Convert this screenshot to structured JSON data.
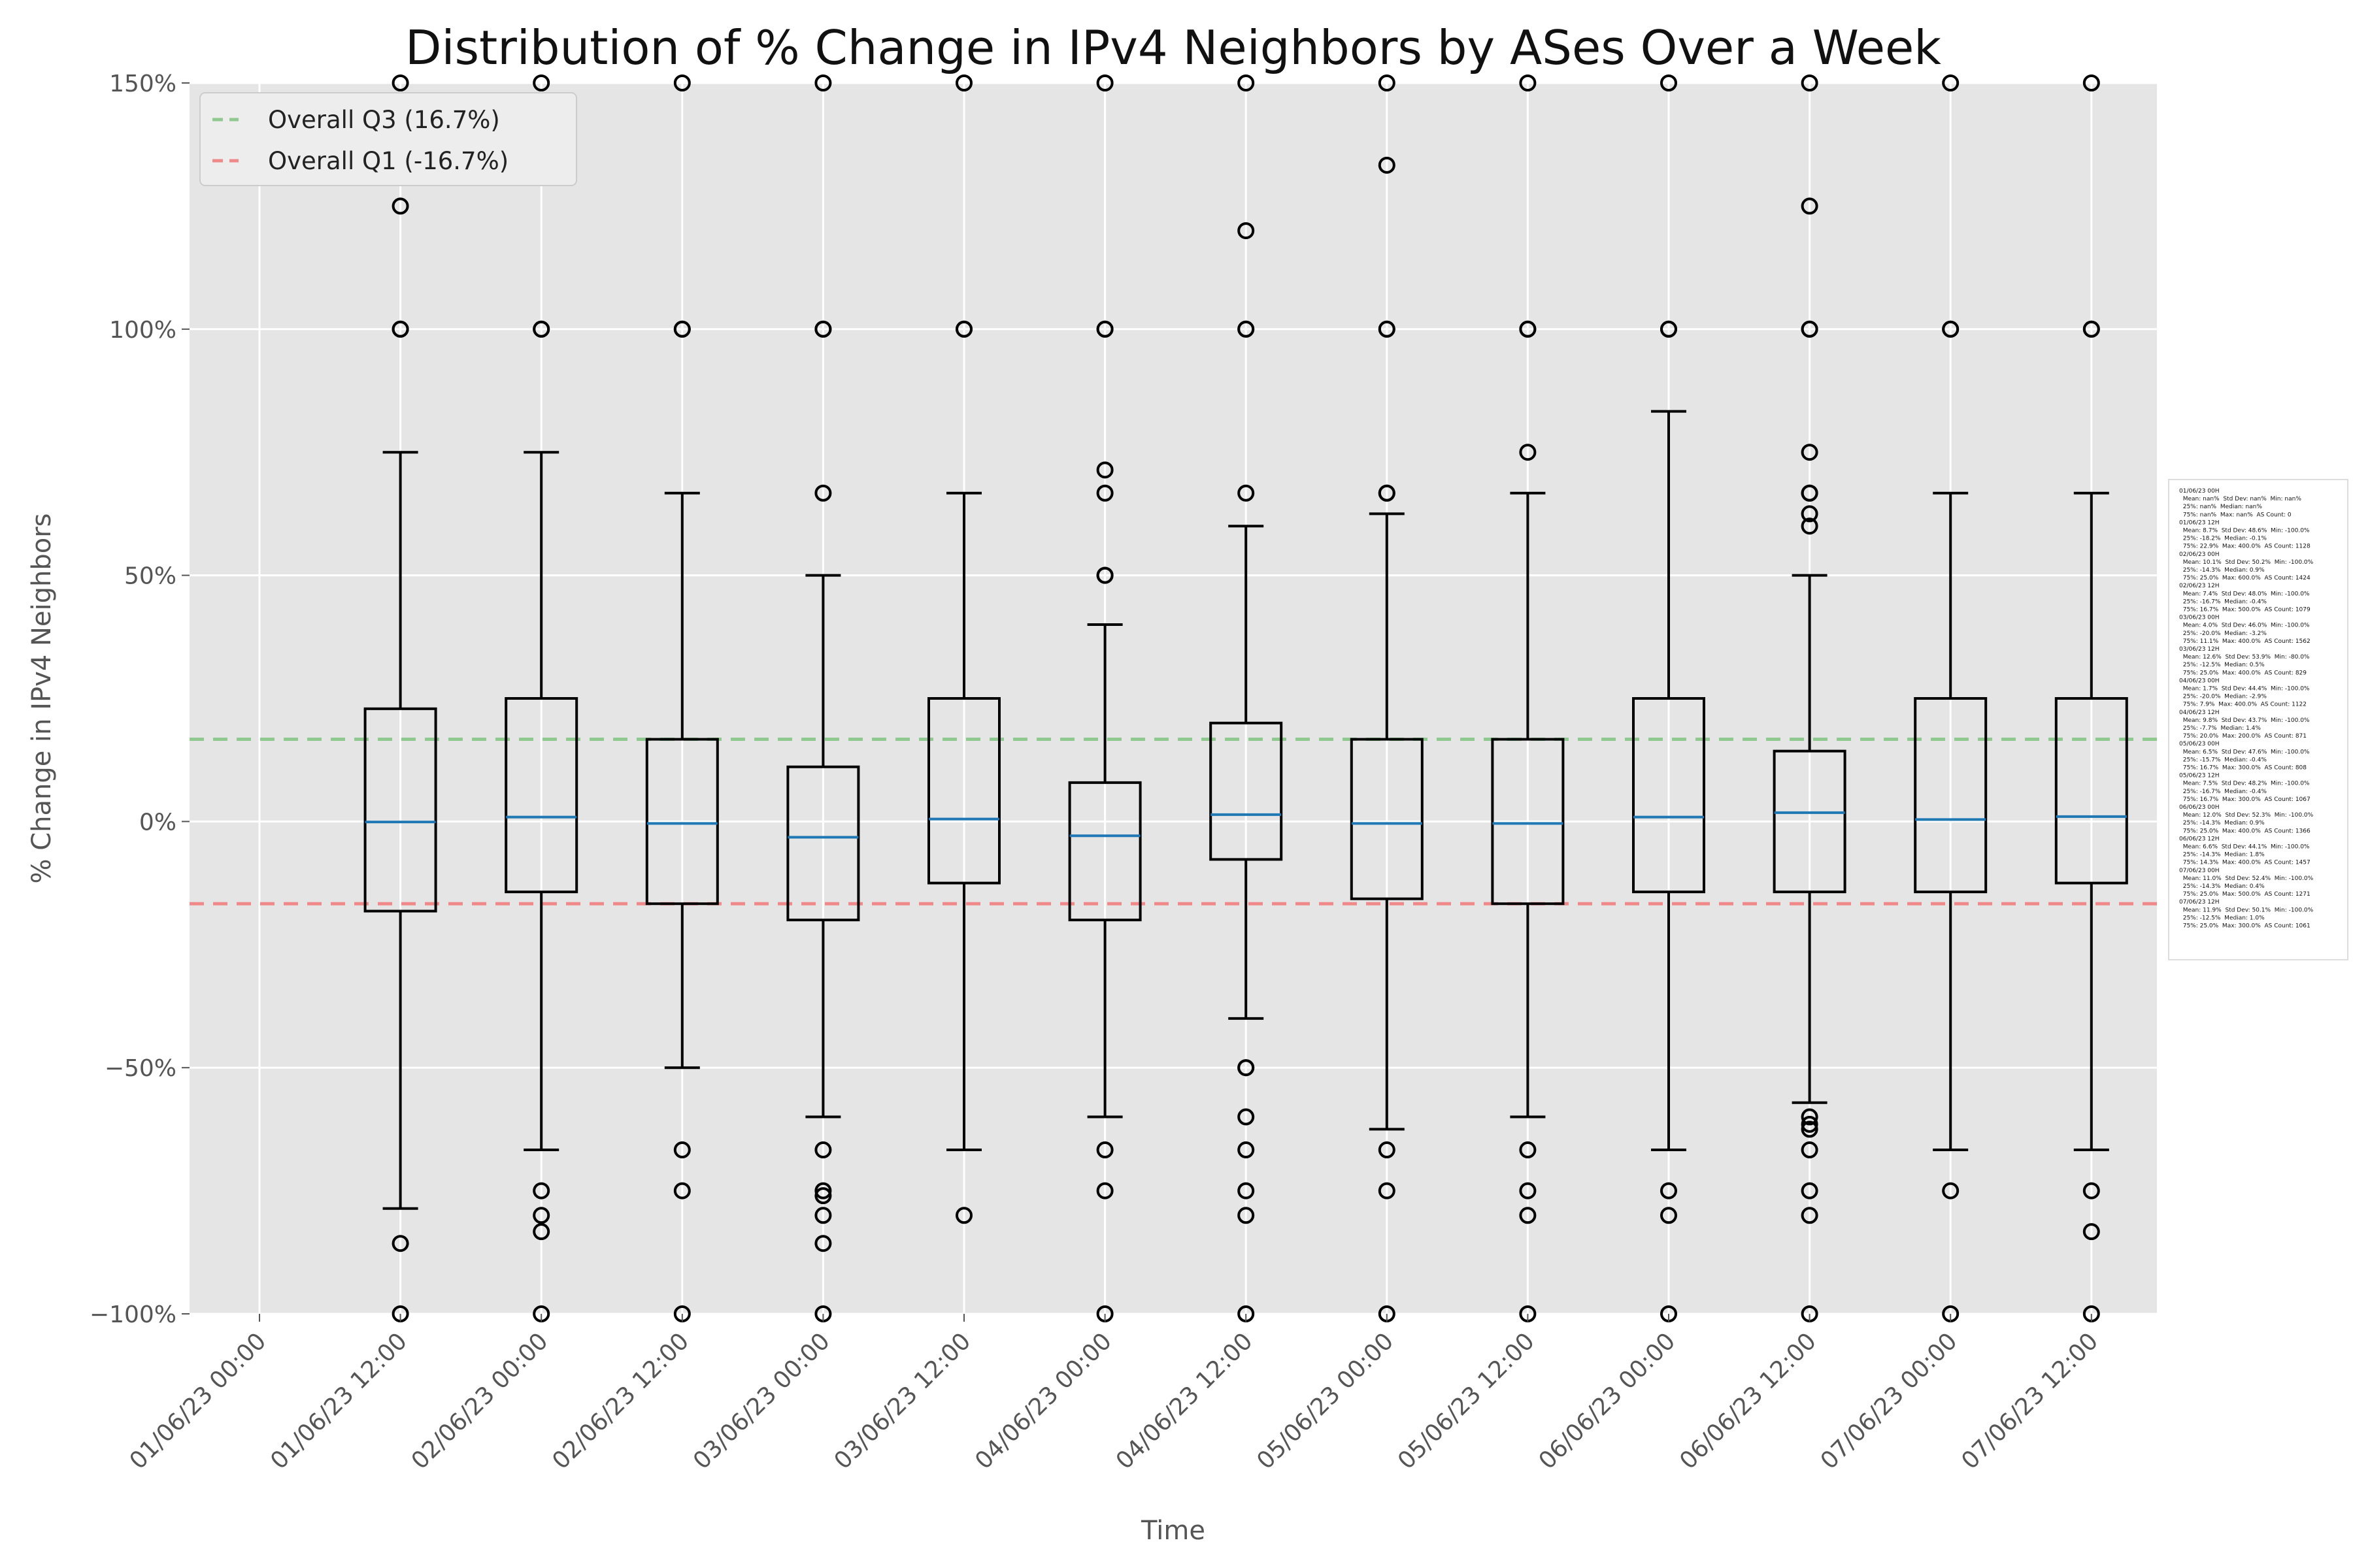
{
  "chart_data": {
    "type": "box",
    "title": "Distribution of % Change in IPv4 Neighbors by ASes Over a Week",
    "xlabel": "Time",
    "ylabel": "% Change in IPv4 Neighbors",
    "ylim": [
      -100,
      150
    ],
    "yticks": [
      -100,
      -50,
      0,
      50,
      100,
      150
    ],
    "ytick_labels": [
      "−100%",
      "−50%",
      "0%",
      "50%",
      "100%",
      "150%"
    ],
    "grid": true,
    "legend_position": "top-left",
    "colors": {
      "plot_bg": "#E5E5E5",
      "grid": "#FFFFFF",
      "box": "#000000",
      "median": "#1F77B4",
      "q3_line": "#8FC98F",
      "q1_line": "#F08A8A"
    },
    "reference_lines": [
      {
        "name": "Overall Q3 (16.7%)",
        "value": 16.7,
        "color": "#8FC98F"
      },
      {
        "name": "Overall Q1 (-16.7%)",
        "value": -16.7,
        "color": "#F08A8A"
      }
    ],
    "categories": [
      "01/06/23 00:00",
      "01/06/23 12:00",
      "02/06/23 00:00",
      "02/06/23 12:00",
      "03/06/23 00:00",
      "03/06/23 12:00",
      "04/06/23 00:00",
      "04/06/23 12:00",
      "05/06/23 00:00",
      "05/06/23 12:00",
      "06/06/23 00:00",
      "06/06/23 12:00",
      "07/06/23 00:00",
      "07/06/23 12:00"
    ],
    "boxes": [
      null,
      {
        "whislo": -78.6,
        "q1": -18.2,
        "median": -0.1,
        "q3": 22.9,
        "whishi": 75,
        "fliers": [
          150,
          125,
          100,
          100,
          -85.7,
          -100
        ]
      },
      {
        "whislo": -66.7,
        "q1": -14.3,
        "median": 0.9,
        "q3": 25.0,
        "whishi": 75,
        "fliers": [
          150,
          100,
          100,
          -75,
          -80,
          -83.3,
          -100
        ]
      },
      {
        "whislo": -50,
        "q1": -16.7,
        "median": -0.4,
        "q3": 16.7,
        "whishi": 66.7,
        "fliers": [
          150,
          100,
          100,
          -66.7,
          -75,
          -100
        ]
      },
      {
        "whislo": -60,
        "q1": -20.0,
        "median": -3.2,
        "q3": 11.1,
        "whishi": 50,
        "fliers": [
          150,
          100,
          100,
          66.7,
          -66.7,
          -75,
          -76,
          -80,
          -85.7,
          -100
        ]
      },
      {
        "whislo": -66.7,
        "q1": -12.5,
        "median": 0.5,
        "q3": 25.0,
        "whishi": 66.7,
        "fliers": [
          150,
          100,
          100,
          -80
        ]
      },
      {
        "whislo": -60,
        "q1": -20.0,
        "median": -2.9,
        "q3": 7.9,
        "whishi": 40,
        "fliers": [
          150,
          100,
          100,
          71.4,
          66.7,
          50,
          50,
          -66.7,
          -75,
          -100
        ]
      },
      {
        "whislo": -40,
        "q1": -7.7,
        "median": 1.4,
        "q3": 20.0,
        "whishi": 60,
        "fliers": [
          150,
          120,
          100,
          100,
          66.7,
          -50,
          -50,
          -60,
          -66.7,
          -75,
          -80,
          -100
        ]
      },
      {
        "whislo": -62.5,
        "q1": -15.7,
        "median": -0.4,
        "q3": 16.7,
        "whishi": 62.5,
        "fliers": [
          150,
          133.3,
          100,
          100,
          66.7,
          66.7,
          -66.7,
          -75,
          -100
        ]
      },
      {
        "whislo": -60,
        "q1": -16.7,
        "median": -0.4,
        "q3": 16.7,
        "whishi": 66.7,
        "fliers": [
          150,
          100,
          100,
          75,
          -66.7,
          -75,
          -80,
          -100
        ]
      },
      {
        "whislo": -66.7,
        "q1": -14.3,
        "median": 0.9,
        "q3": 25.0,
        "whishi": 83.3,
        "fliers": [
          150,
          100,
          100,
          -75,
          -80,
          -100
        ]
      },
      {
        "whislo": -57.1,
        "q1": -14.3,
        "median": 1.8,
        "q3": 14.3,
        "whishi": 50,
        "fliers": [
          150,
          125,
          100,
          100,
          75,
          66.7,
          66.7,
          62.5,
          60,
          -60,
          -61.5,
          -62.5,
          -66.7,
          -75,
          -80,
          -100
        ]
      },
      {
        "whislo": -66.7,
        "q1": -14.3,
        "median": 0.4,
        "q3": 25.0,
        "whishi": 66.7,
        "fliers": [
          150,
          100,
          100,
          -75,
          -100
        ]
      },
      {
        "whislo": -66.7,
        "q1": -12.5,
        "median": 1.0,
        "q3": 25.0,
        "whishi": 66.7,
        "fliers": [
          150,
          100,
          100,
          -75,
          -83.3,
          -100
        ]
      }
    ],
    "stats_box_lines": [
      "01/06/23 00H",
      "  Mean: nan%  Std Dev: nan%  Min: nan%",
      "  25%: nan%  Median: nan%",
      "  75%: nan%  Max: nan%  AS Count: 0",
      "01/06/23 12H",
      "  Mean: 8.7%  Std Dev: 48.6%  Min: -100.0%",
      "  25%: -18.2%  Median: -0.1%",
      "  75%: 22.9%  Max: 400.0%  AS Count: 1128",
      "02/06/23 00H",
      "  Mean: 10.1%  Std Dev: 50.2%  Min: -100.0%",
      "  25%: -14.3%  Median: 0.9%",
      "  75%: 25.0%  Max: 600.0%  AS Count: 1424",
      "02/06/23 12H",
      "  Mean: 7.4%  Std Dev: 48.0%  Min: -100.0%",
      "  25%: -16.7%  Median: -0.4%",
      "  75%: 16.7%  Max: 500.0%  AS Count: 1079",
      "03/06/23 00H",
      "  Mean: 4.0%  Std Dev: 46.0%  Min: -100.0%",
      "  25%: -20.0%  Median: -3.2%",
      "  75%: 11.1%  Max: 400.0%  AS Count: 1562",
      "03/06/23 12H",
      "  Mean: 12.6%  Std Dev: 53.9%  Min: -80.0%",
      "  25%: -12.5%  Median: 0.5%",
      "  75%: 25.0%  Max: 400.0%  AS Count: 829",
      "04/06/23 00H",
      "  Mean: 1.7%  Std Dev: 44.4%  Min: -100.0%",
      "  25%: -20.0%  Median: -2.9%",
      "  75%: 7.9%  Max: 400.0%  AS Count: 1122",
      "04/06/23 12H",
      "  Mean: 9.8%  Std Dev: 43.7%  Min: -100.0%",
      "  25%: -7.7%  Median: 1.4%",
      "  75%: 20.0%  Max: 200.0%  AS Count: 871",
      "05/06/23 00H",
      "  Mean: 6.5%  Std Dev: 47.6%  Min: -100.0%",
      "  25%: -15.7%  Median: -0.4%",
      "  75%: 16.7%  Max: 300.0%  AS Count: 808",
      "05/06/23 12H",
      "  Mean: 7.5%  Std Dev: 48.2%  Min: -100.0%",
      "  25%: -16.7%  Median: -0.4%",
      "  75%: 16.7%  Max: 300.0%  AS Count: 1067",
      "06/06/23 00H",
      "  Mean: 12.0%  Std Dev: 52.3%  Min: -100.0%",
      "  25%: -14.3%  Median: 0.9%",
      "  75%: 25.0%  Max: 400.0%  AS Count: 1366",
      "06/06/23 12H",
      "  Mean: 6.6%  Std Dev: 44.1%  Min: -100.0%",
      "  25%: -14.3%  Median: 1.8%",
      "  75%: 14.3%  Max: 400.0%  AS Count: 1457",
      "07/06/23 00H",
      "  Mean: 11.0%  Std Dev: 52.4%  Min: -100.0%",
      "  25%: -14.3%  Median: 0.4%",
      "  75%: 25.0%  Max: 500.0%  AS Count: 1271",
      "07/06/23 12H",
      "  Mean: 11.9%  Std Dev: 50.1%  Min: -100.0%",
      "  25%: -12.5%  Median: 1.0%",
      "  75%: 25.0%  Max: 300.0%  AS Count: 1061"
    ]
  }
}
